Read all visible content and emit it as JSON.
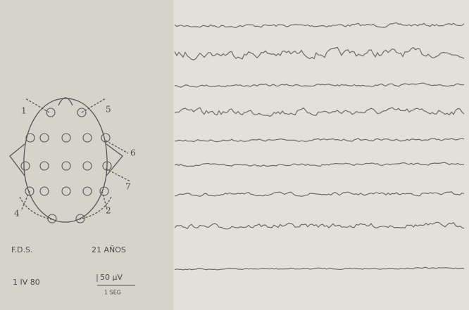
{
  "patient": {
    "initials": "F.D.S.",
    "age": "21 AÑOS",
    "date": "1 IV 80"
  },
  "calibration": {
    "amplitude": "50 μV",
    "time": "1 SEG"
  },
  "electrode_labels": [
    "1",
    "5",
    "6",
    "7",
    "4",
    "2"
  ]
}
